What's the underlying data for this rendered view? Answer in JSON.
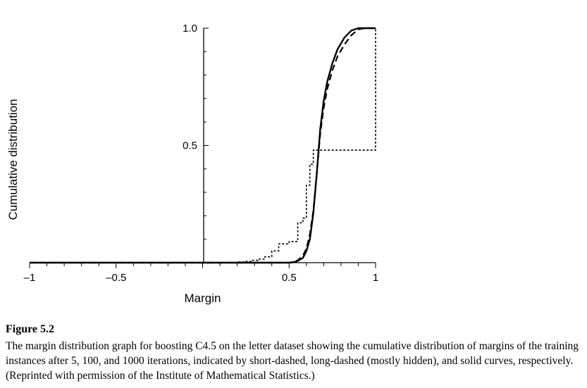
{
  "chart_data": {
    "type": "line",
    "xlabel": "Margin",
    "ylabel": "Cumulative distribution",
    "xlim": [
      -1,
      1
    ],
    "ylim": [
      0,
      1
    ],
    "x_ticks": [
      {
        "value": -1,
        "label": "–1"
      },
      {
        "value": -0.5,
        "label": "–0.5"
      },
      {
        "value": 0.5,
        "label": "0.5"
      },
      {
        "value": 1,
        "label": "1"
      }
    ],
    "y_ticks": [
      {
        "value": 0.5,
        "label": "0.5"
      },
      {
        "value": 1,
        "label": "1.0"
      }
    ],
    "grid": false,
    "series": [
      {
        "iterations": 5,
        "style": "short-dashed",
        "step": true,
        "points": [
          [
            -1,
            0
          ],
          [
            0.18,
            0
          ],
          [
            0.2,
            0.003
          ],
          [
            0.24,
            0.005
          ],
          [
            0.28,
            0.01
          ],
          [
            0.32,
            0.015
          ],
          [
            0.36,
            0.025
          ],
          [
            0.4,
            0.05
          ],
          [
            0.44,
            0.08
          ],
          [
            0.5,
            0.09
          ],
          [
            0.55,
            0.17
          ],
          [
            0.58,
            0.19
          ],
          [
            0.6,
            0.33
          ],
          [
            0.62,
            0.42
          ],
          [
            0.64,
            0.48
          ],
          [
            0.66,
            0.48
          ],
          [
            0.98,
            0.48
          ],
          [
            1.0,
            0.48
          ],
          [
            1.0,
            1.0
          ]
        ]
      },
      {
        "iterations": 100,
        "style": "long-dashed",
        "step": false,
        "points": [
          [
            -1,
            0
          ],
          [
            0.52,
            0
          ],
          [
            0.55,
            0.01
          ],
          [
            0.58,
            0.03
          ],
          [
            0.6,
            0.06
          ],
          [
            0.62,
            0.12
          ],
          [
            0.64,
            0.22
          ],
          [
            0.66,
            0.38
          ],
          [
            0.68,
            0.55
          ],
          [
            0.7,
            0.66
          ],
          [
            0.72,
            0.74
          ],
          [
            0.75,
            0.82
          ],
          [
            0.78,
            0.88
          ],
          [
            0.82,
            0.93
          ],
          [
            0.86,
            0.97
          ],
          [
            0.9,
            0.995
          ],
          [
            0.94,
            1.0
          ],
          [
            1.0,
            1.0
          ]
        ]
      },
      {
        "iterations": 1000,
        "style": "solid",
        "step": false,
        "points": [
          [
            -1,
            0
          ],
          [
            0.5,
            0
          ],
          [
            0.54,
            0.004
          ],
          [
            0.58,
            0.02
          ],
          [
            0.6,
            0.05
          ],
          [
            0.62,
            0.1
          ],
          [
            0.64,
            0.21
          ],
          [
            0.66,
            0.38
          ],
          [
            0.68,
            0.57
          ],
          [
            0.7,
            0.69
          ],
          [
            0.72,
            0.77
          ],
          [
            0.75,
            0.85
          ],
          [
            0.78,
            0.91
          ],
          [
            0.82,
            0.96
          ],
          [
            0.86,
            0.99
          ],
          [
            0.9,
            1.0
          ],
          [
            1.0,
            1.0
          ]
        ]
      }
    ]
  },
  "caption": {
    "title": "Figure 5.2",
    "text": "The margin distribution graph for boosting C4.5 on the letter dataset showing the cumulative distribution of margins of the training instances after 5, 100, and 1000 iterations, indicated by short-dashed, long-dashed (mostly hidden), and solid curves, respectively. (Reprinted with permission of the Institute of Mathematical Statistics.)"
  }
}
